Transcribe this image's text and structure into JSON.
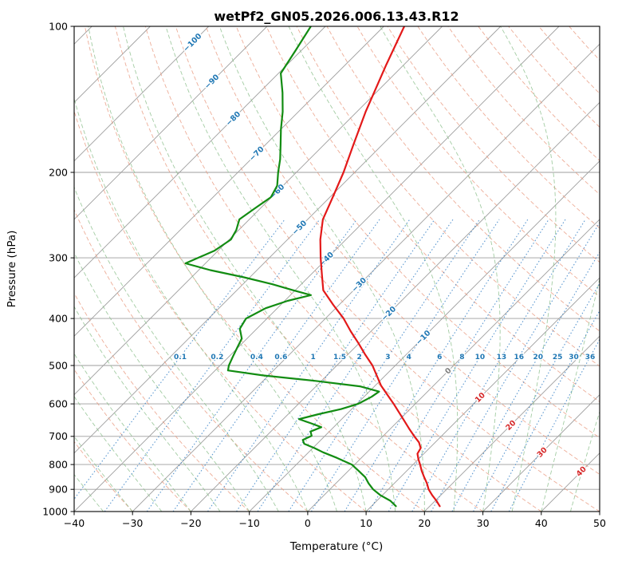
{
  "title": "wetPf2_GN05.2026.006.13.43.R12",
  "chart_data": {
    "type": "line",
    "variant": "skew-t-log-p",
    "title": "wetPf2_GN05.2026.006.13.43.R12",
    "xlabel": "Temperature (°C)",
    "ylabel": "Pressure (hPa)",
    "xlim": [
      -40,
      50
    ],
    "x_ticks": [
      -40,
      -30,
      -20,
      -10,
      0,
      10,
      20,
      30,
      40,
      50
    ],
    "pressure_lim": [
      1000,
      100
    ],
    "pressure_ticks": [
      100,
      200,
      300,
      400,
      500,
      600,
      700,
      800,
      900,
      1000
    ],
    "skew_deg": 45,
    "grid": true,
    "legend": false,
    "isotherms": {
      "start": -120,
      "end": 50,
      "step": 10
    },
    "dry_adiabats": {
      "start": -40,
      "end": 200,
      "step": 10
    },
    "moist_adiabats": {
      "start": -40,
      "end": 45,
      "step": 5
    },
    "mixing_ratio_g_kg": [
      0.1,
      0.2,
      0.4,
      0.6,
      1,
      1.5,
      2,
      3,
      4,
      6,
      8,
      10,
      13,
      16,
      20,
      25,
      30,
      36
    ],
    "mixing_label_pressure": 480,
    "mixing_top_pressure": 250,
    "isotherm_labels": [
      {
        "t": -100,
        "p": 108,
        "color": "#1f77b4"
      },
      {
        "t": -90,
        "p": 130,
        "color": "#1f77b4"
      },
      {
        "t": -80,
        "p": 155,
        "color": "#1f77b4"
      },
      {
        "t": -70,
        "p": 183,
        "color": "#1f77b4"
      },
      {
        "t": -60,
        "p": 219,
        "color": "#1f77b4"
      },
      {
        "t": -50,
        "p": 260,
        "color": "#1f77b4"
      },
      {
        "t": -40,
        "p": 302,
        "color": "#1f77b4"
      },
      {
        "t": -30,
        "p": 341,
        "color": "#1f77b4"
      },
      {
        "t": -20,
        "p": 391,
        "color": "#1f77b4"
      },
      {
        "t": -10,
        "p": 438,
        "color": "#1f77b4"
      },
      {
        "t": 0,
        "p": 513,
        "color": "#7f7f7f"
      },
      {
        "t": 10,
        "p": 582,
        "color": "#d62728"
      },
      {
        "t": 20,
        "p": 664,
        "color": "#d62728"
      },
      {
        "t": 30,
        "p": 755,
        "color": "#d62728"
      },
      {
        "t": 40,
        "p": 827,
        "color": "#d62728"
      }
    ],
    "styles": {
      "isotherm": "#9e9e9e",
      "grid": "#9e9e9e",
      "dry_adiabat": "#e8997e",
      "moist_adiabat": "#8cbf8c",
      "mixing": "#3d85c8",
      "mixing_label": "#1f77b4",
      "frame": "#000000"
    },
    "series": [
      {
        "name": "temperature",
        "color": "#e31919",
        "points": [
          [
            100,
            -66.5
          ],
          [
            120,
            -63
          ],
          [
            150,
            -58.5
          ],
          [
            175,
            -55
          ],
          [
            200,
            -51.9
          ],
          [
            225,
            -49.5
          ],
          [
            250,
            -47.4
          ],
          [
            275,
            -44.4
          ],
          [
            300,
            -41.2
          ],
          [
            325,
            -38.1
          ],
          [
            350,
            -35.2
          ],
          [
            375,
            -31
          ],
          [
            400,
            -26.9
          ],
          [
            425,
            -23.5
          ],
          [
            450,
            -20.1
          ],
          [
            475,
            -17
          ],
          [
            500,
            -13.9
          ],
          [
            525,
            -11.4
          ],
          [
            550,
            -9
          ],
          [
            575,
            -6.3
          ],
          [
            600,
            -3.7
          ],
          [
            625,
            -1.3
          ],
          [
            650,
            1
          ],
          [
            675,
            3.2
          ],
          [
            700,
            5.4
          ],
          [
            720,
            7.2
          ],
          [
            740,
            8.5
          ],
          [
            760,
            8.9
          ],
          [
            780,
            10
          ],
          [
            800,
            11.2
          ],
          [
            825,
            12.6
          ],
          [
            850,
            14.1
          ],
          [
            875,
            15.6
          ],
          [
            900,
            16.9
          ],
          [
            925,
            18.5
          ],
          [
            950,
            20.2
          ],
          [
            975,
            21.7
          ]
        ]
      },
      {
        "name": "dewpoint",
        "color": "#128c12",
        "points": [
          [
            100,
            -82.5
          ],
          [
            112,
            -81
          ],
          [
            125,
            -79.6
          ],
          [
            137,
            -76
          ],
          [
            150,
            -72.7
          ],
          [
            163,
            -70
          ],
          [
            175,
            -67.5
          ],
          [
            188,
            -65
          ],
          [
            200,
            -63.1
          ],
          [
            213,
            -61
          ],
          [
            225,
            -60.1
          ],
          [
            238,
            -61
          ],
          [
            250,
            -61.7
          ],
          [
            263,
            -60.4
          ],
          [
            275,
            -59.7
          ],
          [
            290,
            -60.6
          ],
          [
            308,
            -63.4
          ],
          [
            318,
            -58
          ],
          [
            329,
            -51
          ],
          [
            340,
            -45
          ],
          [
            350,
            -40.3
          ],
          [
            358,
            -36.5
          ],
          [
            368,
            -39.5
          ],
          [
            381,
            -42
          ],
          [
            400,
            -43.6
          ],
          [
            420,
            -42.9
          ],
          [
            440,
            -40.9
          ],
          [
            460,
            -40.1
          ],
          [
            480,
            -39.3
          ],
          [
            500,
            -38.5
          ],
          [
            512,
            -37.8
          ],
          [
            524,
            -31
          ],
          [
            538,
            -21
          ],
          [
            552,
            -12.5
          ],
          [
            566,
            -8.3
          ],
          [
            580,
            -8.7
          ],
          [
            600,
            -9.8
          ],
          [
            615,
            -11.8
          ],
          [
            630,
            -14.8
          ],
          [
            645,
            -17.3
          ],
          [
            658,
            -14.5
          ],
          [
            670,
            -12.1
          ],
          [
            684,
            -13.2
          ],
          [
            698,
            -12.3
          ],
          [
            712,
            -13.1
          ],
          [
            725,
            -12.2
          ],
          [
            740,
            -9.7
          ],
          [
            755,
            -7.5
          ],
          [
            775,
            -4.2
          ],
          [
            800,
            -0.5
          ],
          [
            825,
            1.8
          ],
          [
            850,
            4
          ],
          [
            875,
            5.6
          ],
          [
            900,
            7.4
          ],
          [
            925,
            9.6
          ],
          [
            950,
            12.3
          ],
          [
            975,
            14.2
          ]
        ]
      }
    ]
  }
}
